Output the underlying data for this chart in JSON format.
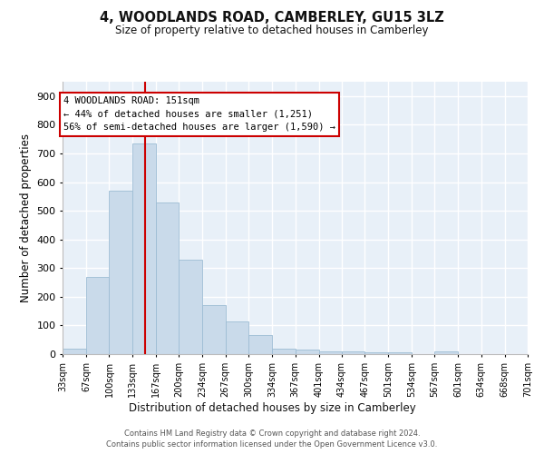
{
  "title": "4, WOODLANDS ROAD, CAMBERLEY, GU15 3LZ",
  "subtitle": "Size of property relative to detached houses in Camberley",
  "xlabel": "Distribution of detached houses by size in Camberley",
  "ylabel": "Number of detached properties",
  "bar_color": "#c9daea",
  "bar_edge_color": "#9dbdd4",
  "background_color": "#e8f0f8",
  "grid_color": "#ffffff",
  "vline_x": 151,
  "vline_color": "#cc0000",
  "annotation_text": "4 WOODLANDS ROAD: 151sqm\n← 44% of detached houses are smaller (1,251)\n56% of semi-detached houses are larger (1,590) →",
  "annotation_box_facecolor": "#ffffff",
  "annotation_box_edgecolor": "#cc0000",
  "footer_line1": "Contains HM Land Registry data © Crown copyright and database right 2024.",
  "footer_line2": "Contains public sector information licensed under the Open Government Licence v3.0.",
  "bin_edges": [
    33,
    67,
    100,
    133,
    167,
    200,
    234,
    267,
    300,
    334,
    367,
    401,
    434,
    467,
    501,
    534,
    567,
    601,
    634,
    668,
    701
  ],
  "bin_labels": [
    "33sqm",
    "67sqm",
    "100sqm",
    "133sqm",
    "167sqm",
    "200sqm",
    "234sqm",
    "267sqm",
    "300sqm",
    "334sqm",
    "367sqm",
    "401sqm",
    "434sqm",
    "467sqm",
    "501sqm",
    "534sqm",
    "567sqm",
    "601sqm",
    "634sqm",
    "668sqm",
    "701sqm"
  ],
  "bar_heights": [
    20,
    270,
    570,
    735,
    530,
    330,
    170,
    115,
    65,
    20,
    15,
    10,
    10,
    5,
    5,
    0,
    8,
    0,
    0,
    0
  ],
  "ylim": [
    0,
    950
  ],
  "yticks": [
    0,
    100,
    200,
    300,
    400,
    500,
    600,
    700,
    800,
    900
  ]
}
